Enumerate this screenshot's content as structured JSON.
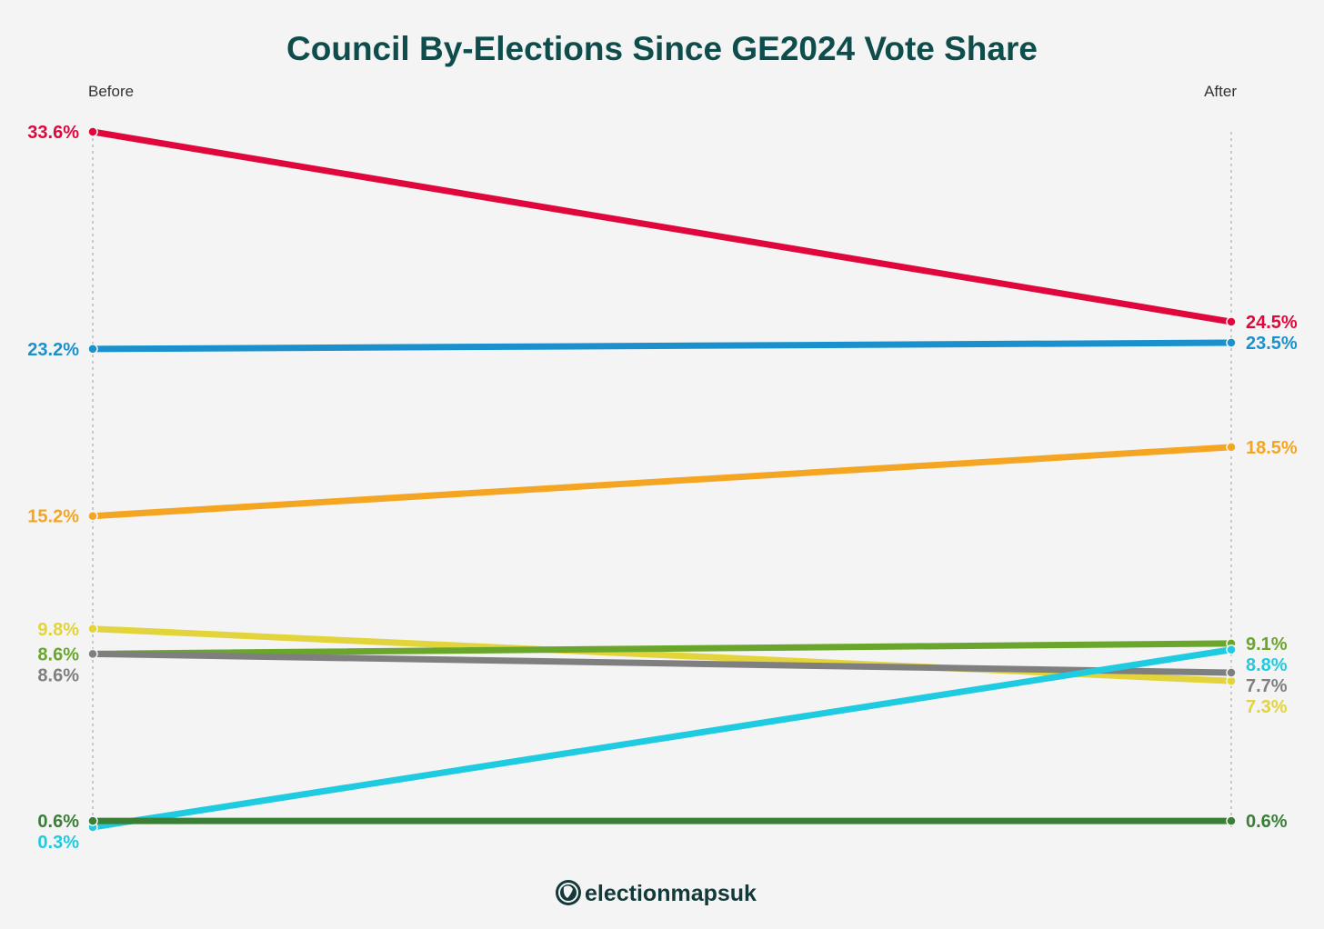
{
  "chart_data": {
    "type": "line",
    "title": "Council By-Elections Since GE2024 Vote Share",
    "x": [
      "Before",
      "After"
    ],
    "ylim": [
      0.3,
      33.6
    ],
    "series": [
      {
        "color": "#e0073d",
        "values": [
          33.6,
          24.5
        ],
        "labels": [
          "33.6%",
          "24.5%"
        ]
      },
      {
        "color": "#1a91cc",
        "values": [
          23.2,
          23.5
        ],
        "labels": [
          "23.2%",
          "23.5%"
        ]
      },
      {
        "color": "#f4a623",
        "values": [
          15.2,
          18.5
        ],
        "labels": [
          "15.2%",
          "18.5%"
        ]
      },
      {
        "color": "#e2d43a",
        "values": [
          9.8,
          7.3
        ],
        "labels": [
          "9.8%",
          "7.3%"
        ]
      },
      {
        "color": "#6aa62c",
        "values": [
          8.6,
          9.1
        ],
        "labels": [
          "8.6%",
          "9.1%"
        ]
      },
      {
        "color": "#7f7f7f",
        "values": [
          8.6,
          7.7
        ],
        "labels": [
          "8.6%",
          "7.7%"
        ]
      },
      {
        "color": "#1fcbe0",
        "values": [
          0.3,
          8.8
        ],
        "labels": [
          "0.3%",
          "8.8%"
        ]
      },
      {
        "color": "#3a7f36",
        "values": [
          0.6,
          0.6
        ],
        "labels": [
          "0.6%",
          "0.6%"
        ]
      }
    ]
  },
  "branding": {
    "logo_text": "electionmapsuk",
    "logo_color": "#14393a"
  }
}
